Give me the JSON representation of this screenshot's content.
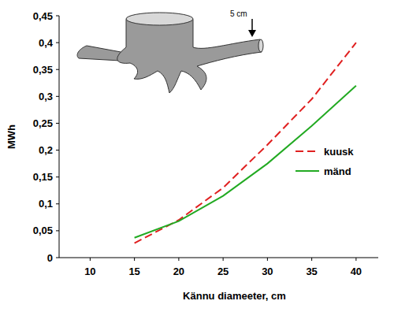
{
  "chart_data": {
    "type": "line",
    "x_label": "Kännu diameeter, cm",
    "y_label": "MWh",
    "annotation": "5 cm",
    "x": [
      15,
      20,
      25,
      30,
      35,
      40
    ],
    "series": [
      {
        "name": "kuusk",
        "color": "#e02020",
        "line_style": "dashed",
        "values": [
          0.027,
          0.07,
          0.13,
          0.21,
          0.295,
          0.4
        ]
      },
      {
        "name": "mänd",
        "color": "#22aa22",
        "line_style": "solid",
        "values": [
          0.037,
          0.068,
          0.115,
          0.175,
          0.245,
          0.32
        ]
      }
    ],
    "xlim": [
      6.5,
      42.5
    ],
    "xticks": [
      10,
      15,
      20,
      25,
      30,
      35,
      40
    ],
    "ylim": [
      0,
      0.45
    ],
    "yticks": [
      0,
      {
        "value": 0.05,
        "label": "0,05"
      },
      {
        "value": 0.1,
        "label": "0,1"
      },
      {
        "value": 0.15,
        "label": "0,15"
      },
      {
        "value": 0.2,
        "label": "0,2"
      },
      {
        "value": 0.25,
        "label": "0,25"
      },
      {
        "value": 0.3,
        "label": "0,3"
      },
      {
        "value": 0.35,
        "label": "0,35"
      },
      {
        "value": 0.4,
        "label": "0,4"
      },
      {
        "value": 0.45,
        "label": "0,45"
      }
    ],
    "grid": false,
    "legend": "right"
  }
}
